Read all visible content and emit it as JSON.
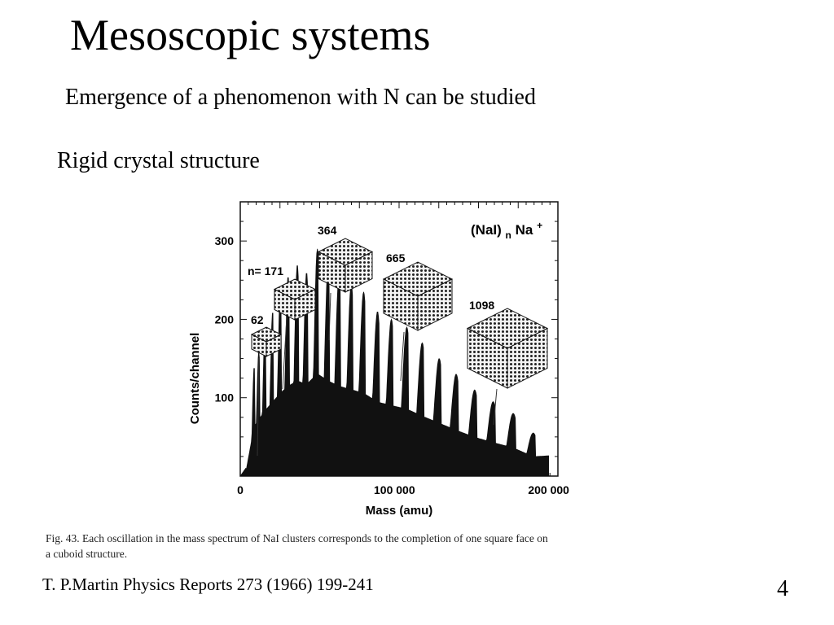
{
  "slide": {
    "title": "Mesoscopic systems",
    "subtitle": "Emergence of a phenomenon with N can be studied",
    "section": "Rigid crystal structure",
    "citation": "T. P.Martin Physics Reports 273 (1966) 199-241",
    "page_number": "4"
  },
  "figure": {
    "caption_line1": "Fig. 43.  Each oscillation in the mass spectrum of NaI clusters corresponds to the completion of one square face on",
    "caption_line2": "a cuboid structure.",
    "legend_main": "(NaI)",
    "legend_sub": "n",
    "legend_tail": "Na",
    "legend_sup": "+",
    "cluster_labels": [
      "62",
      "n= 171",
      "364",
      "665",
      "1098"
    ]
  },
  "chart_data": {
    "type": "line",
    "title": "",
    "xlabel": "Mass (amu)",
    "ylabel": "Counts/channel",
    "x_ticks": [
      "0",
      "100 000",
      "200 000"
    ],
    "y_ticks": [
      "100",
      "200",
      "300"
    ],
    "xlim": [
      0,
      200000
    ],
    "ylim": [
      0,
      350
    ],
    "series": [
      {
        "peak_masses": [
          3600,
          9000,
          12000,
          16000,
          21000,
          26000,
          31000,
          37000,
          43000,
          50000,
          57000,
          64000,
          72000,
          80000,
          89000,
          98000,
          108000,
          118000,
          129000,
          140000,
          152000,
          164000,
          177000,
          190000
        ],
        "peak_counts": [
          10,
          140,
          160,
          185,
          210,
          235,
          255,
          270,
          260,
          290,
          270,
          255,
          245,
          235,
          210,
          200,
          190,
          170,
          150,
          130,
          110,
          95,
          80,
          55
        ]
      }
    ]
  }
}
